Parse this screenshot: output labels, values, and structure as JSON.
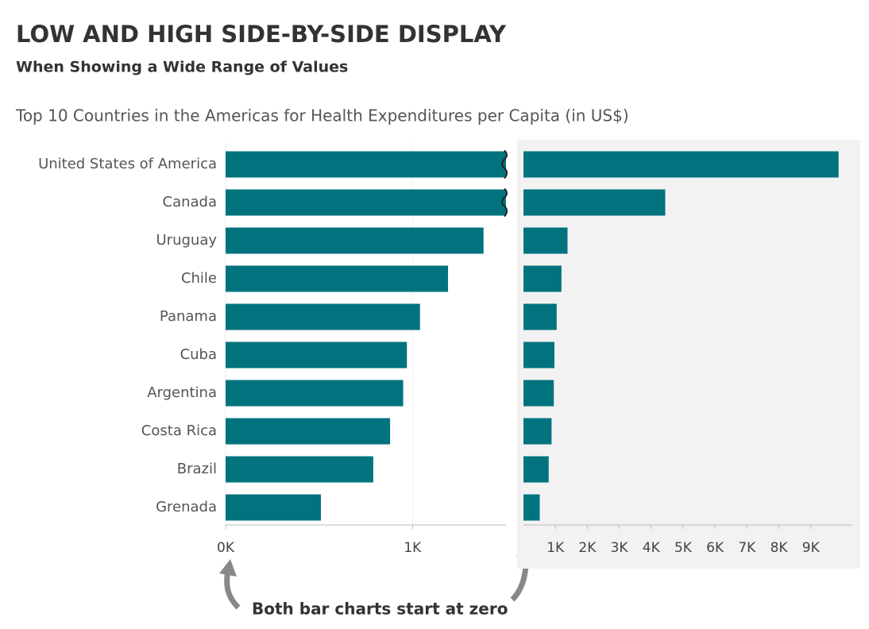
{
  "chart_data": {
    "type": "bar",
    "title": "LOW AND HIGH SIDE-BY-SIDE DISPLAY",
    "subtitle": "When Showing a Wide Range of Values",
    "chart_title": "Top 10 Countries in the Americas for Health Expenditures per Capita (in US$)",
    "annotation": "Both bar charts start at zero",
    "color": "#00737f",
    "categories": [
      "United States of America",
      "Canada",
      "Uruguay",
      "Chile",
      "Panama",
      "Cuba",
      "Argentina",
      "Costa Rica",
      "Brazil",
      "Grenada"
    ],
    "values": [
      9870,
      4440,
      1380,
      1190,
      1040,
      970,
      950,
      880,
      790,
      510
    ],
    "panels": [
      {
        "xlim": [
          0,
          1500
        ],
        "xticks": [
          {
            "value": 0,
            "label": "0K"
          },
          {
            "value": 1000,
            "label": "1K"
          }
        ],
        "grid": true
      },
      {
        "xlim": [
          0,
          10300
        ],
        "xticks": [
          {
            "value": 1000,
            "label": "1K"
          },
          {
            "value": 2000,
            "label": "2K"
          },
          {
            "value": 3000,
            "label": "3K"
          },
          {
            "value": 4000,
            "label": "4K"
          },
          {
            "value": 5000,
            "label": "5K"
          },
          {
            "value": 6000,
            "label": "6K"
          },
          {
            "value": 7000,
            "label": "7K"
          },
          {
            "value": 8000,
            "label": "8K"
          },
          {
            "value": 9000,
            "label": "9K"
          }
        ],
        "background": "#f2f2f2"
      }
    ]
  }
}
